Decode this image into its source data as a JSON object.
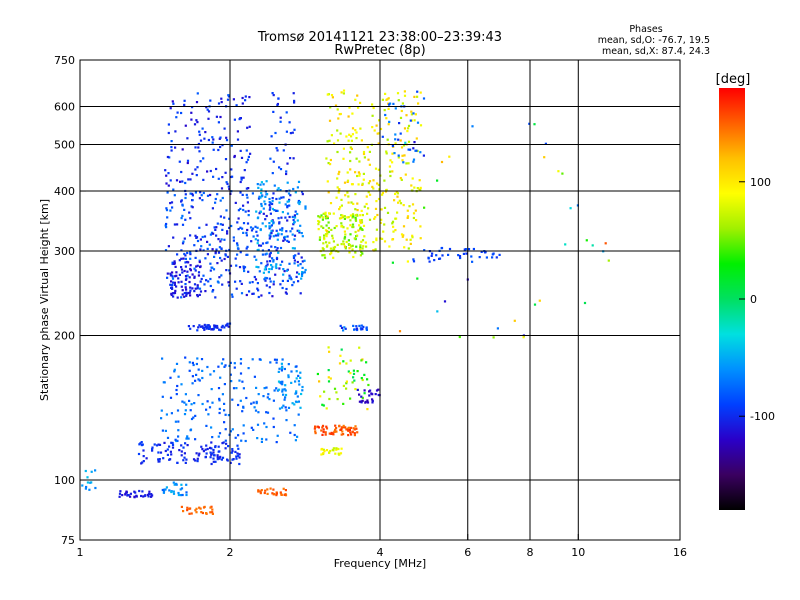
{
  "chart_data": {
    "type": "scatter",
    "title": "Tromsø 20141121 23:38:00–23:39:43",
    "subtitle": "RwPretec (8p)",
    "xlabel": "Frequency [MHz]",
    "ylabel": "Stationary phase Virtual Height [km]",
    "x_scale": "log",
    "y_scale": "log",
    "xlim": [
      1,
      16
    ],
    "ylim": [
      75,
      750
    ],
    "x_ticks": [
      1,
      2,
      4,
      6,
      8,
      10,
      16
    ],
    "y_ticks": [
      75,
      100,
      200,
      300,
      400,
      500,
      600,
      750
    ],
    "grid": true,
    "x_gridlines": [
      2,
      4,
      6,
      8,
      10
    ],
    "y_gridlines": [
      100,
      200,
      300,
      400,
      500,
      600
    ],
    "stats": {
      "heading": "Phases",
      "line_o": "mean, sd,O: -76.7, 19.5",
      "line_x": "mean, sd,X: 87.4, 24.3"
    },
    "colorbar": {
      "label": "[deg]",
      "min": -180,
      "max": 180,
      "ticks": [
        -100,
        0,
        100
      ],
      "colormap": [
        "#000000",
        "#3a0060",
        "#2a00c8",
        "#0040ff",
        "#0090ff",
        "#00e0e0",
        "#00e060",
        "#00f000",
        "#a0f000",
        "#ffff00",
        "#ffc000",
        "#ff6000",
        "#ff0000"
      ]
    },
    "clusters": [
      {
        "x": [
          1.48,
          2.2
        ],
        "y": [
          400,
          650
        ],
        "phase": [
          -120,
          -80
        ],
        "n": 140
      },
      {
        "x": [
          1.48,
          2.8
        ],
        "y": [
          240,
          400
        ],
        "phase": [
          -115,
          -70
        ],
        "n": 380
      },
      {
        "x": [
          1.5,
          1.75
        ],
        "y": [
          240,
          290
        ],
        "phase": [
          -120,
          -100
        ],
        "n": 70
      },
      {
        "x": [
          2.25,
          2.85
        ],
        "y": [
          260,
          420
        ],
        "phase": [
          -70,
          -40
        ],
        "n": 120
      },
      {
        "x": [
          2.4,
          2.7
        ],
        "y": [
          300,
          650
        ],
        "phase": [
          -110,
          -80
        ],
        "n": 60
      },
      {
        "x": [
          3.0,
          3.7
        ],
        "y": [
          290,
          360
        ],
        "phase": [
          40,
          90
        ],
        "n": 110
      },
      {
        "x": [
          3.1,
          4.85
        ],
        "y": [
          300,
          650
        ],
        "phase": [
          60,
          120
        ],
        "n": 320
      },
      {
        "x": [
          4.0,
          4.9
        ],
        "y": [
          450,
          650
        ],
        "phase": [
          -100,
          -60
        ],
        "n": 30
      },
      {
        "x": [
          1.65,
          2.0
        ],
        "y": [
          205,
          212
        ],
        "phase": [
          -110,
          -90
        ],
        "n": 45
      },
      {
        "x": [
          1.3,
          2.1
        ],
        "y": [
          108,
          120
        ],
        "phase": [
          -110,
          -90
        ],
        "n": 120
      },
      {
        "x": [
          1.45,
          2.75
        ],
        "y": [
          120,
          180
        ],
        "phase": [
          -90,
          -60
        ],
        "n": 200
      },
      {
        "x": [
          2.5,
          2.8
        ],
        "y": [
          140,
          175
        ],
        "phase": [
          -70,
          -40
        ],
        "n": 40
      },
      {
        "x": [
          1.0,
          1.08
        ],
        "y": [
          95,
          105
        ],
        "phase": [
          -70,
          -40
        ],
        "n": 12
      },
      {
        "x": [
          1.2,
          1.4
        ],
        "y": [
          92,
          95
        ],
        "phase": [
          -120,
          -100
        ],
        "n": 35
      },
      {
        "x": [
          1.45,
          1.65
        ],
        "y": [
          93,
          99
        ],
        "phase": [
          -80,
          -40
        ],
        "n": 25
      },
      {
        "x": [
          1.6,
          1.85
        ],
        "y": [
          85,
          88
        ],
        "phase": [
          140,
          160
        ],
        "n": 25
      },
      {
        "x": [
          2.25,
          2.6
        ],
        "y": [
          93,
          96
        ],
        "phase": [
          140,
          160
        ],
        "n": 25
      },
      {
        "x": [
          2.95,
          3.6
        ],
        "y": [
          124,
          130
        ],
        "phase": [
          140,
          170
        ],
        "n": 60
      },
      {
        "x": [
          3.05,
          3.35
        ],
        "y": [
          113,
          117
        ],
        "phase": [
          70,
          100
        ],
        "n": 25
      },
      {
        "x": [
          3.0,
          3.8
        ],
        "y": [
          140,
          190
        ],
        "phase": [
          0,
          120
        ],
        "n": 50
      },
      {
        "x": [
          3.3,
          3.8
        ],
        "y": [
          205,
          210
        ],
        "phase": [
          -110,
          -60
        ],
        "n": 20
      },
      {
        "x": [
          3.6,
          4.0
        ],
        "y": [
          145,
          155
        ],
        "phase": [
          -130,
          -110
        ],
        "n": 25
      },
      {
        "x": [
          4.6,
          6.2
        ],
        "y": [
          285,
          305
        ],
        "phase": [
          -100,
          -80
        ],
        "n": 30
      },
      {
        "x": [
          6.3,
          7.0
        ],
        "y": [
          290,
          300
        ],
        "phase": [
          -100,
          -80
        ],
        "n": 12
      },
      {
        "x": [
          4.2,
          12.0
        ],
        "y": [
          180,
          600
        ],
        "phase": [
          -120,
          160
        ],
        "n": 40
      }
    ]
  }
}
